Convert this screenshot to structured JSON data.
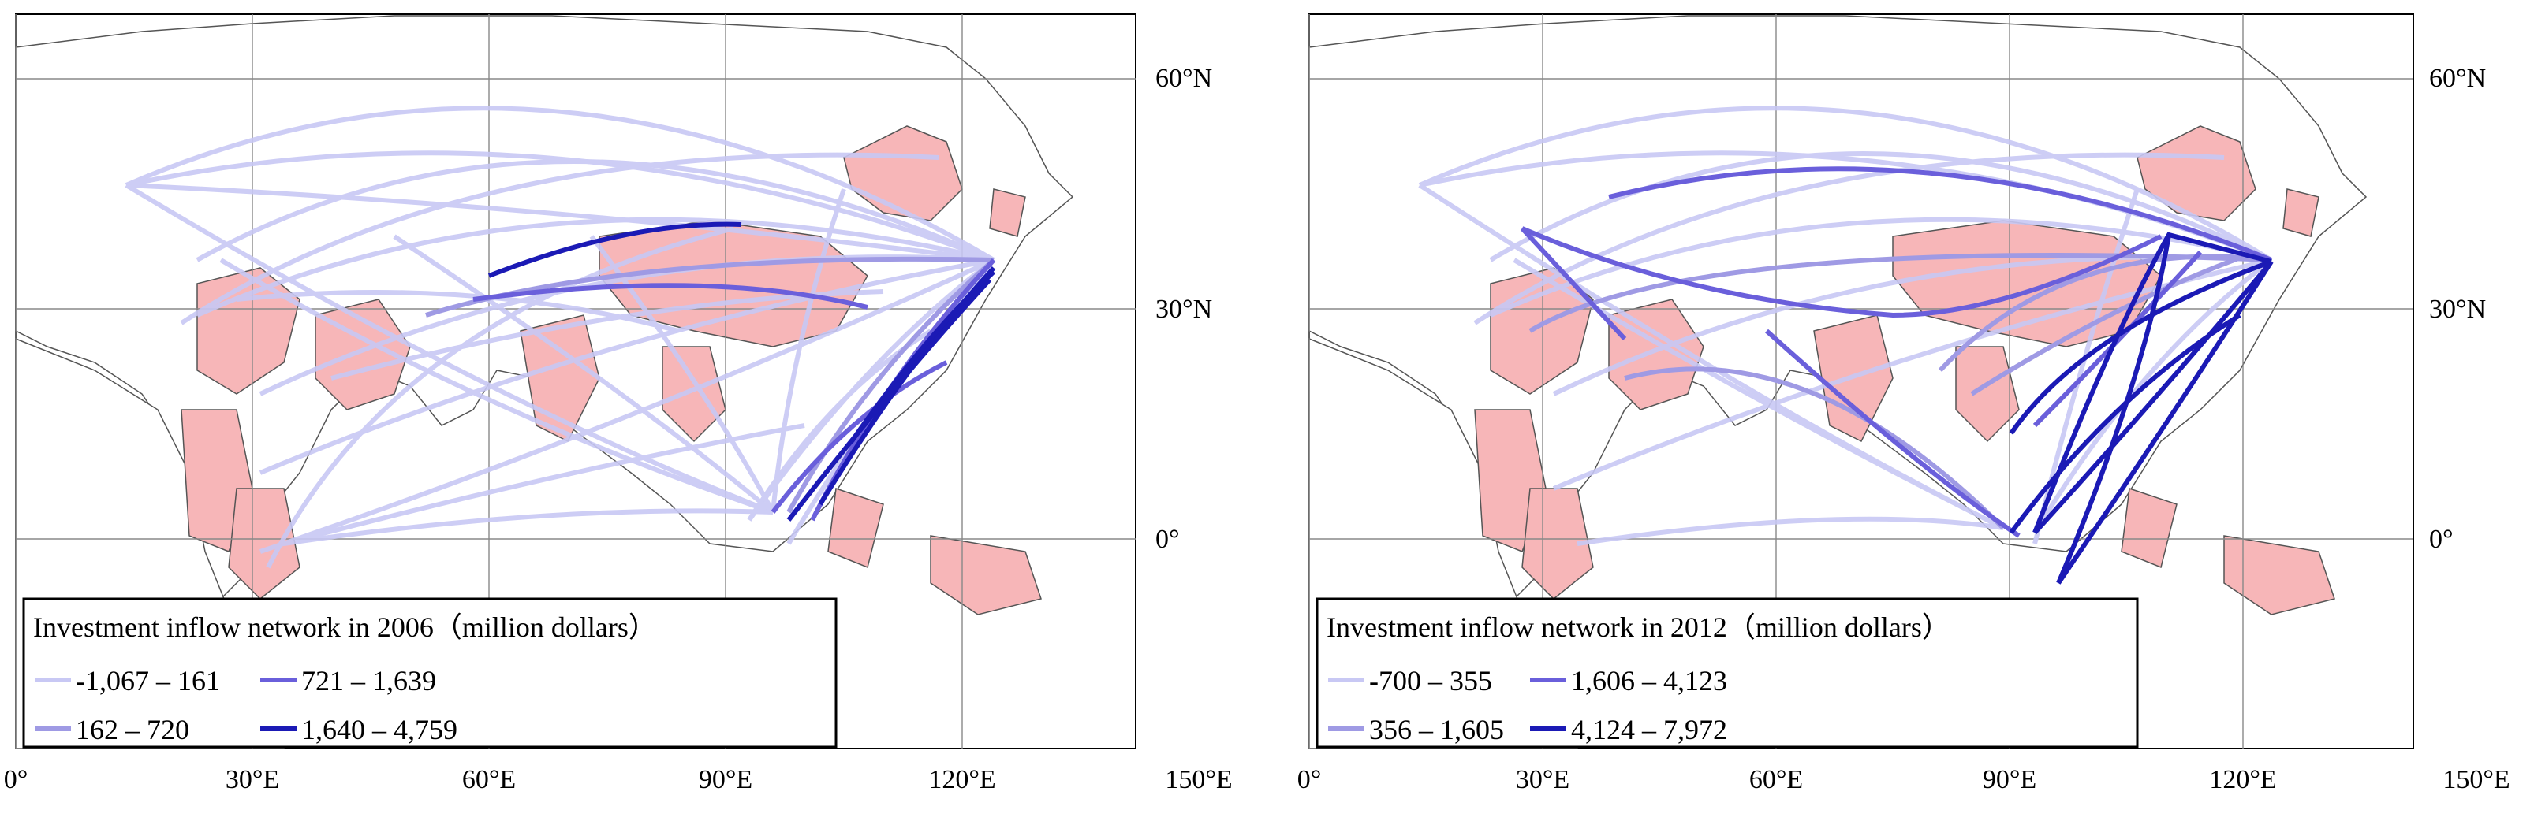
{
  "axes": {
    "x_ticks": [
      "0°",
      "30°E",
      "60°E",
      "90°E",
      "120°E",
      "150°E"
    ],
    "x_values": [
      0,
      30,
      60,
      90,
      120,
      150
    ],
    "y_ticks": [
      "60°N",
      "30°N",
      "0°"
    ],
    "y_values": [
      60,
      30,
      0
    ],
    "lon_range": [
      0,
      160
    ],
    "lat_range": [
      -27,
      69
    ]
  },
  "colors": {
    "class1": "#c8c8f4",
    "class2": "#9f9ae4",
    "class3": "#6a5fdb",
    "class4": "#1b1ab5",
    "highlight_country": "#f7b6b8",
    "land_outline": "#555555",
    "grid": "#888888"
  },
  "panels": [
    {
      "legend_title": "Investment inflow network in 2006（million dollars）",
      "legend": [
        {
          "label": "-1,067 – 161",
          "class": "class1"
        },
        {
          "label": "721 – 1,639",
          "class": "class3"
        },
        {
          "label": "162 – 720",
          "class": "class2"
        },
        {
          "label": "1,640 – 4,759",
          "class": "class4"
        }
      ]
    },
    {
      "legend_title": "Investment inflow network in 2012（million dollars）",
      "legend": [
        {
          "label": "-700 – 355",
          "class": "class1"
        },
        {
          "label": "1,606 – 4,123",
          "class": "class3"
        },
        {
          "label": "356 – 1,605",
          "class": "class2"
        },
        {
          "label": "4,124 – 7,972",
          "class": "class4"
        }
      ]
    }
  ]
}
